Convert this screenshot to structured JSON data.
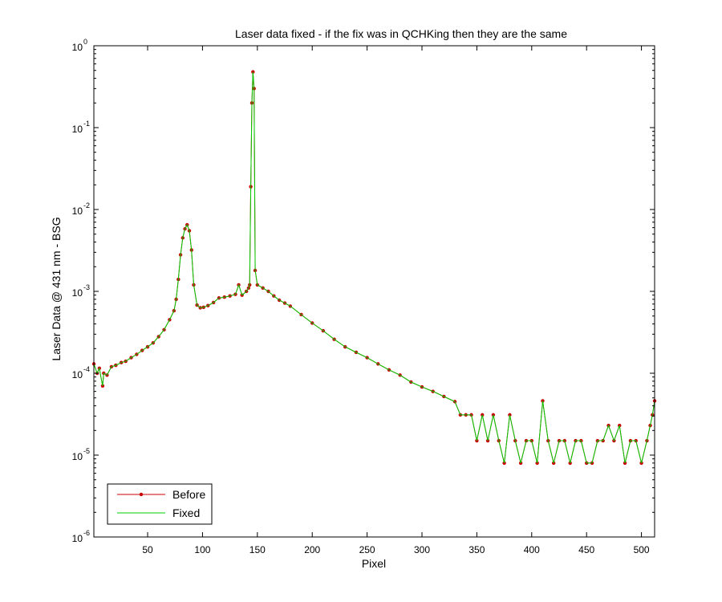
{
  "chart_data": {
    "type": "line",
    "title": "Laser data fixed - if the fix was in QCHKing then they are the same",
    "xlabel": "Pixel",
    "ylabel": "Laser Data @ 431 nm - BSG",
    "xlim": [
      1,
      512
    ],
    "ylim": [
      1e-06,
      1
    ],
    "yscale": "log",
    "grid": false,
    "legend_position": "bottom-left",
    "x_ticks": [
      50,
      100,
      150,
      200,
      250,
      300,
      350,
      400,
      450,
      500
    ],
    "y_ticks": [
      {
        "value": 1e-06,
        "base": "10",
        "exp": "-6"
      },
      {
        "value": 1e-05,
        "base": "10",
        "exp": "-5"
      },
      {
        "value": 0.0001,
        "base": "10",
        "exp": "-4"
      },
      {
        "value": 0.001,
        "base": "10",
        "exp": "-3"
      },
      {
        "value": 0.01,
        "base": "10",
        "exp": "-2"
      },
      {
        "value": 0.1,
        "base": "10",
        "exp": "-1"
      },
      {
        "value": 1,
        "base": "10",
        "exp": "0"
      }
    ],
    "x_tick_labels": [
      "50",
      "100",
      "150",
      "200",
      "250",
      "300",
      "350",
      "400",
      "450",
      "500"
    ],
    "series": [
      {
        "name": "Before",
        "color": "#cc0000",
        "marker": "dot",
        "x": [
          1,
          4,
          6,
          9,
          10,
          13,
          17,
          21,
          26,
          30,
          35,
          40,
          45,
          50,
          55,
          60,
          65,
          70,
          74,
          76,
          78,
          80,
          82,
          84,
          86,
          88,
          90,
          92,
          95,
          98,
          101,
          105,
          110,
          115,
          120,
          125,
          130,
          133,
          136,
          140,
          142,
          143,
          144,
          145,
          146,
          147,
          148,
          150,
          155,
          160,
          165,
          170,
          175,
          180,
          190,
          200,
          210,
          220,
          230,
          240,
          250,
          260,
          270,
          280,
          290,
          300,
          310,
          320,
          330,
          335,
          340,
          345,
          350,
          355,
          360,
          365,
          370,
          375,
          380,
          385,
          390,
          395,
          400,
          405,
          410,
          415,
          420,
          425,
          430,
          435,
          440,
          445,
          450,
          455,
          460,
          465,
          470,
          475,
          480,
          485,
          490,
          495,
          500,
          505,
          508,
          510,
          512
        ],
        "y": [
          0.00013,
          0.0001,
          0.000115,
          7e-05,
          0.0001,
          9.5e-05,
          0.00012,
          0.000125,
          0.000135,
          0.00014,
          0.000155,
          0.00017,
          0.00019,
          0.00021,
          0.000235,
          0.00028,
          0.00034,
          0.00045,
          0.00058,
          0.0008,
          0.0014,
          0.0028,
          0.0045,
          0.0058,
          0.0065,
          0.0055,
          0.0032,
          0.0012,
          0.00068,
          0.00063,
          0.00064,
          0.00067,
          0.00073,
          0.00083,
          0.00085,
          0.00088,
          0.00092,
          0.0012,
          0.0009,
          0.001,
          0.0011,
          0.0012,
          0.019,
          0.2,
          0.48,
          0.3,
          0.0018,
          0.0012,
          0.0011,
          0.001,
          0.00088,
          0.00078,
          0.00072,
          0.00066,
          0.00052,
          0.00041,
          0.00033,
          0.00026,
          0.00021,
          0.00018,
          0.000155,
          0.00013,
          0.00011,
          9.5e-05,
          7.8e-05,
          6.8e-05,
          6e-05,
          5.2e-05,
          4.5e-05,
          3.1e-05,
          3.1e-05,
          3.1e-05,
          1.5e-05,
          3.1e-05,
          1.5e-05,
          3.1e-05,
          1.5e-05,
          8e-06,
          3.1e-05,
          1.5e-05,
          8e-06,
          1.5e-05,
          1.5e-05,
          8e-06,
          4.6e-05,
          1.5e-05,
          8e-06,
          1.5e-05,
          1.5e-05,
          8e-06,
          1.5e-05,
          1.5e-05,
          8e-06,
          8e-06,
          1.5e-05,
          1.5e-05,
          2.3e-05,
          1.5e-05,
          2.3e-05,
          8e-06,
          1.5e-05,
          1.5e-05,
          8e-06,
          1.5e-05,
          2.3e-05,
          3.1e-05,
          4.6e-05
        ]
      },
      {
        "name": "Fixed",
        "color": "#00cc00",
        "marker": "none",
        "x": [
          1,
          4,
          6,
          9,
          10,
          13,
          17,
          21,
          26,
          30,
          35,
          40,
          45,
          50,
          55,
          60,
          65,
          70,
          74,
          76,
          78,
          80,
          82,
          84,
          86,
          88,
          90,
          92,
          95,
          98,
          101,
          105,
          110,
          115,
          120,
          125,
          130,
          133,
          136,
          140,
          142,
          143,
          144,
          145,
          146,
          147,
          148,
          150,
          155,
          160,
          165,
          170,
          175,
          180,
          190,
          200,
          210,
          220,
          230,
          240,
          250,
          260,
          270,
          280,
          290,
          300,
          310,
          320,
          330,
          335,
          340,
          345,
          350,
          355,
          360,
          365,
          370,
          375,
          380,
          385,
          390,
          395,
          400,
          405,
          410,
          415,
          420,
          425,
          430,
          435,
          440,
          445,
          450,
          455,
          460,
          465,
          470,
          475,
          480,
          485,
          490,
          495,
          500,
          505,
          508,
          510,
          512
        ],
        "y": [
          0.00013,
          0.0001,
          0.000115,
          7e-05,
          0.0001,
          9.5e-05,
          0.00012,
          0.000125,
          0.000135,
          0.00014,
          0.000155,
          0.00017,
          0.00019,
          0.00021,
          0.000235,
          0.00028,
          0.00034,
          0.00045,
          0.00058,
          0.0008,
          0.0014,
          0.0028,
          0.0045,
          0.0058,
          0.0065,
          0.0055,
          0.0032,
          0.0012,
          0.00068,
          0.00063,
          0.00064,
          0.00067,
          0.00073,
          0.00083,
          0.00085,
          0.00088,
          0.00092,
          0.0012,
          0.0009,
          0.001,
          0.0011,
          0.0012,
          0.019,
          0.2,
          0.48,
          0.3,
          0.0018,
          0.0012,
          0.0011,
          0.001,
          0.00088,
          0.00078,
          0.00072,
          0.00066,
          0.00052,
          0.00041,
          0.00033,
          0.00026,
          0.00021,
          0.00018,
          0.000155,
          0.00013,
          0.00011,
          9.5e-05,
          7.8e-05,
          6.8e-05,
          6e-05,
          5.2e-05,
          4.5e-05,
          3.1e-05,
          3.1e-05,
          3.1e-05,
          1.5e-05,
          3.1e-05,
          1.5e-05,
          3.1e-05,
          1.5e-05,
          8e-06,
          3.1e-05,
          1.5e-05,
          8e-06,
          1.5e-05,
          1.5e-05,
          8e-06,
          4.6e-05,
          1.5e-05,
          8e-06,
          1.5e-05,
          1.5e-05,
          8e-06,
          1.5e-05,
          1.5e-05,
          8e-06,
          8e-06,
          1.5e-05,
          1.5e-05,
          2.3e-05,
          1.5e-05,
          2.3e-05,
          8e-06,
          1.5e-05,
          1.5e-05,
          8e-06,
          1.5e-05,
          2.3e-05,
          3.1e-05,
          4.6e-05
        ]
      }
    ]
  }
}
